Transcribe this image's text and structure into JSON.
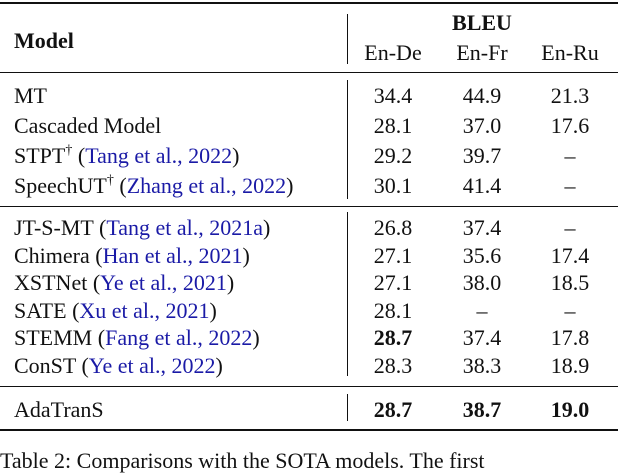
{
  "table": {
    "header": {
      "model": "Model",
      "group": "BLEU",
      "columns": [
        "En-De",
        "En-Fr",
        "En-Ru"
      ]
    },
    "sections": [
      [
        {
          "model": "MT",
          "values": [
            "34.4",
            "44.9",
            "21.3"
          ]
        },
        {
          "model": "Cascaded Model",
          "values": [
            "28.1",
            "37.0",
            "17.6"
          ]
        },
        {
          "model": "STPT",
          "sup": "†",
          "citation": {
            "open": "(",
            "text": "Tang et al., 2022",
            "close": ")"
          },
          "values": [
            "29.2",
            "39.7",
            "–"
          ]
        },
        {
          "model": "SpeechUT",
          "sup": "†",
          "citation": {
            "open": "(",
            "text": "Zhang et al., 2022",
            "close": ")"
          },
          "values": [
            "30.1",
            "41.4",
            "–"
          ]
        }
      ],
      [
        {
          "model": "JT-S-MT",
          "citation": {
            "open": "(",
            "text": "Tang et al., 2021a",
            "close": ")"
          },
          "values": [
            "26.8",
            "37.4",
            "–"
          ]
        },
        {
          "model": "Chimera",
          "citation": {
            "open": "(",
            "text": "Han et al., 2021",
            "close": ")"
          },
          "values": [
            "27.1",
            "35.6",
            "17.4"
          ]
        },
        {
          "model": "XSTNet",
          "citation": {
            "open": "(",
            "text": "Ye et al., 2021",
            "close": ")"
          },
          "values": [
            "27.1",
            "38.0",
            "18.5"
          ]
        },
        {
          "model": "SATE",
          "citation": {
            "open": "(",
            "text": "Xu et al., 2021",
            "close": ")"
          },
          "values": [
            "28.1",
            "–",
            "–"
          ]
        },
        {
          "model": "STEMM",
          "citation": {
            "open": "(",
            "text": "Fang et al., 2022",
            "close": ")"
          },
          "values": [
            "28.7",
            "37.4",
            "17.8"
          ],
          "bold": [
            true,
            false,
            false
          ]
        },
        {
          "model": "ConST",
          "citation": {
            "open": "(",
            "text": "Ye et al., 2022",
            "close": ")"
          },
          "values": [
            "28.3",
            "38.3",
            "18.9"
          ]
        }
      ],
      [
        {
          "model": "AdaTranS",
          "values": [
            "28.7",
            "38.7",
            "19.0"
          ],
          "bold": [
            true,
            true,
            true
          ]
        }
      ]
    ],
    "caption": "Table 2: Comparisons with the SOTA models. The first"
  }
}
